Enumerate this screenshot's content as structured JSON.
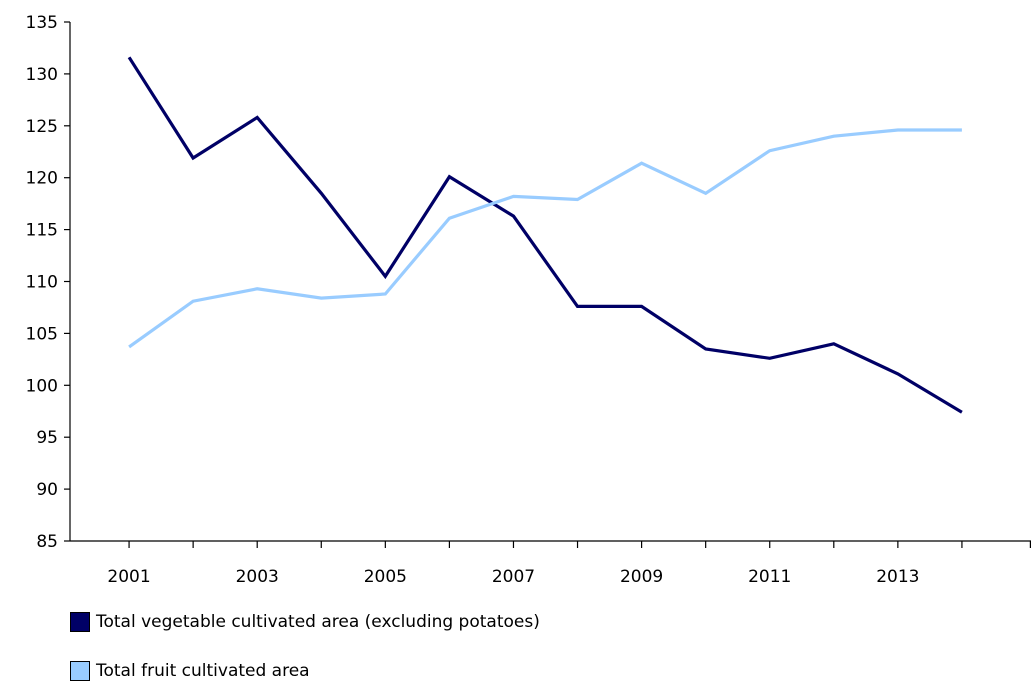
{
  "chart_data": {
    "type": "line",
    "x": [
      2001,
      2002,
      2003,
      2004,
      2005,
      2006,
      2007,
      2008,
      2009,
      2010,
      2011,
      2012,
      2013,
      2014
    ],
    "xticks": [
      "2001",
      "2003",
      "2005",
      "2007",
      "2009",
      "2011",
      "2013"
    ],
    "yticks": [
      "85",
      "90",
      "95",
      "100",
      "105",
      "110",
      "115",
      "120",
      "125",
      "130",
      "135"
    ],
    "ylim": [
      85,
      135
    ],
    "xlim": [
      2000,
      2015
    ],
    "grid": false,
    "legend_position": "bottom",
    "series": [
      {
        "name": "Total vegetable cultivated area (excluding potatoes)",
        "color": "#000066",
        "values": [
          131.6,
          121.9,
          125.8,
          118.5,
          110.5,
          120.1,
          116.3,
          107.6,
          107.6,
          103.5,
          102.6,
          104.0,
          101.1,
          97.4
        ]
      },
      {
        "name": "Total fruit cultivated area",
        "color": "#99ccff",
        "values": [
          103.7,
          108.1,
          109.3,
          108.4,
          108.8,
          116.1,
          118.2,
          117.9,
          121.4,
          118.5,
          122.6,
          124.0,
          124.6,
          124.6
        ]
      }
    ]
  }
}
